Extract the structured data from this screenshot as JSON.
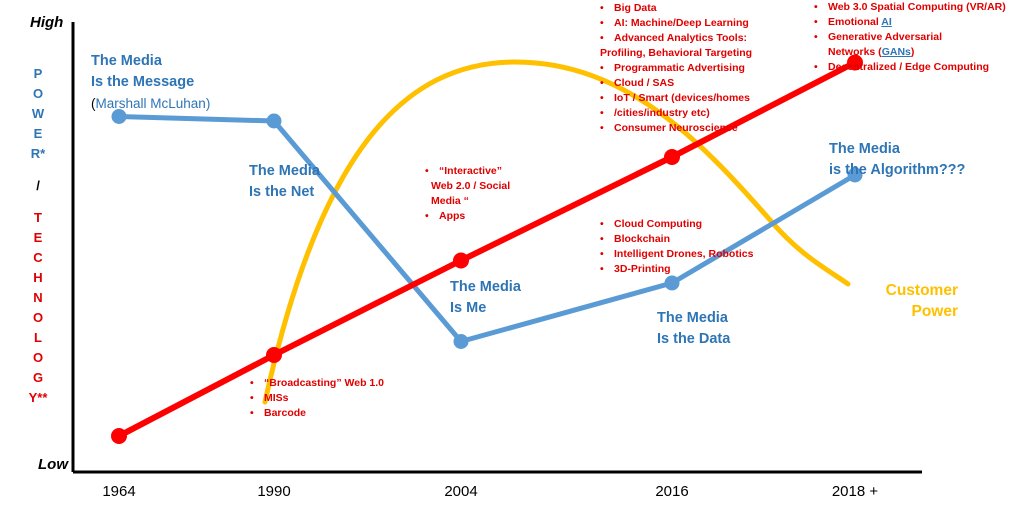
{
  "chart_data": {
    "type": "line",
    "title": "",
    "xlabel": "",
    "ylabel_top": "High",
    "ylabel_bottom": "Low",
    "ylabel": [
      "P",
      "O",
      "W",
      "E",
      "R*",
      "/",
      "T",
      "E",
      "C",
      "H",
      "N",
      "O",
      "L",
      "O",
      "G",
      "Y**"
    ],
    "categories": [
      "1964",
      "1990",
      "2004",
      "2016",
      "2018 +"
    ],
    "series": [
      {
        "name": "",
        "color": "#5b9bd5",
        "values": [
          0.79,
          0.78,
          0.29,
          0.42,
          0.66
        ]
      },
      {
        "name": "",
        "color": "#ff0000",
        "values": [
          0.08,
          0.26,
          0.47,
          0.7,
          0.91
        ]
      },
      {
        "name": "Customer Power",
        "color": "#ffc000",
        "description_shape": "hump"
      }
    ],
    "grid": false
  },
  "annotations": {
    "media_message_l1": "The Media",
    "media_message_l2": "Is the Message",
    "media_message_l3_open": "(",
    "media_message_l3_name": "Marshall McLuhan",
    "media_message_l3_close": ")",
    "media_net_l1": "The Media",
    "media_net_l2": "Is the Net",
    "media_me_l1": "The Media",
    "media_me_l2": "Is Me",
    "media_data_l1": "The Media",
    "media_data_l2": "Is the Data",
    "media_algo_l1": "The Media",
    "media_algo_l2": "is the Algorithm???",
    "customer_l1": "Customer",
    "customer_l2": "Power"
  },
  "tech_1990": [
    "“Broadcasting” Web 1.0",
    "MISs",
    "Barcode"
  ],
  "tech_2004": [
    "“Interactive”",
    "Web 2.0 / Social",
    "Media “",
    "Apps"
  ],
  "tech_2016_low": [
    "Cloud Computing",
    "Blockchain",
    "Intelligent Drones, Robotics",
    "3D-Printing"
  ],
  "tech_2016_high": [
    "Big Data",
    "AI: Machine/Deep Learning",
    "Advanced Analytics Tools:",
    "Profiling, Behavioral Targeting",
    "Programmatic Advertising",
    "Cloud / SAS",
    "IoT / Smart (devices/homes",
    "/cities/industry etc)",
    "Consumer Neuroscience"
  ],
  "tech_2018": [
    "Web 3.0 Spatial Computing (VR/AR)",
    "Emotional ",
    "AI",
    "Generative Adversarial",
    "Networks (",
    "GANs",
    ")",
    "Decentralized / Edge Computing"
  ]
}
